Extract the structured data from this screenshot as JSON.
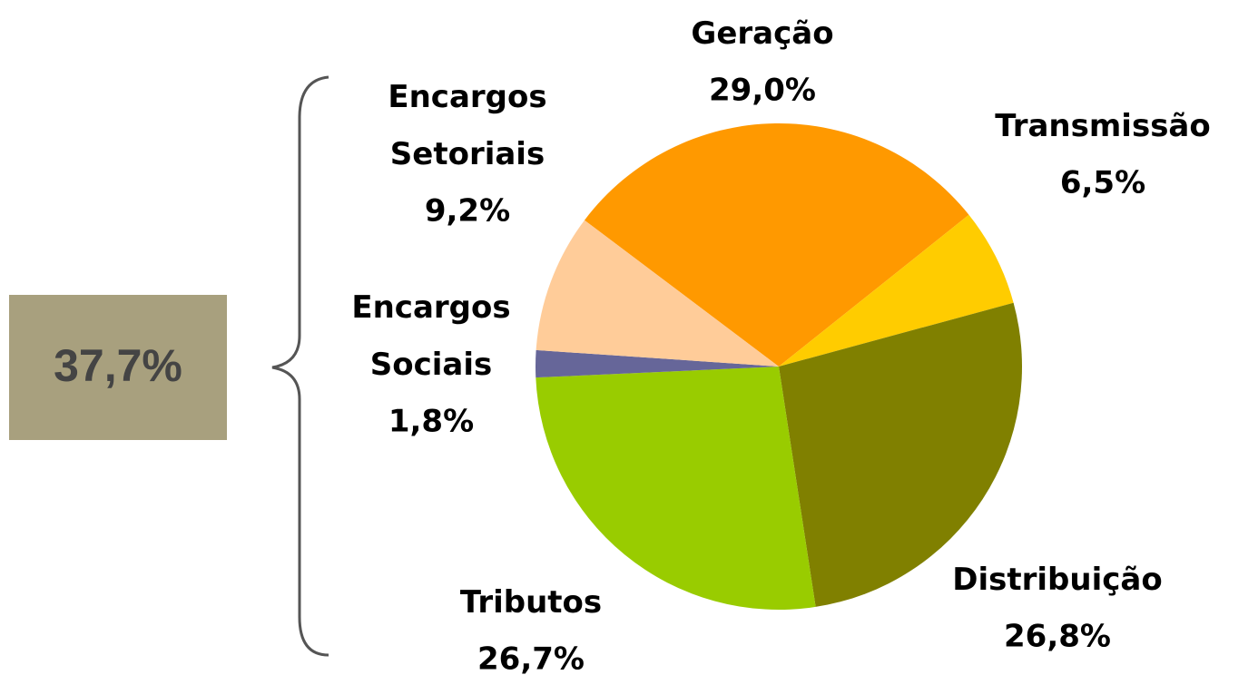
{
  "chart_data": {
    "type": "pie",
    "categories": [
      "Geração",
      "Transmissão",
      "Distribuição",
      "Tributos",
      "Encargos Sociais",
      "Encargos Setoriais"
    ],
    "values": [
      29.0,
      6.5,
      26.8,
      26.7,
      1.8,
      9.2
    ],
    "value_labels": [
      "29,0%",
      "6,5%",
      "26,8%",
      "26,7%",
      "1,8%",
      "9,2%"
    ],
    "colors": [
      "#ff9900",
      "#ffcc00",
      "#808000",
      "#99cc00",
      "#666699",
      "#ffcc99"
    ],
    "annotation": "37,7%"
  }
}
